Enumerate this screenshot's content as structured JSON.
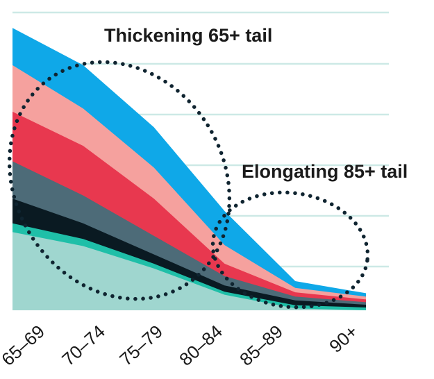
{
  "chart_data": {
    "type": "area",
    "stacked": true,
    "categories": [
      "65–69",
      "70–74",
      "75–79",
      "80–84",
      "85–89",
      "90+"
    ],
    "ylim": [
      0,
      100
    ],
    "grid": true,
    "series": [
      {
        "color": "#1fbfa8",
        "values": [
          28,
          23,
          15,
          6,
          1.6,
          0.9
        ]
      },
      {
        "color": "#0a1a22",
        "values": [
          8,
          5,
          3,
          2,
          1.6,
          0.9
        ]
      },
      {
        "color": "#4d6b78",
        "values": [
          12,
          9,
          6,
          3,
          1.2,
          0.8
        ]
      },
      {
        "color": "#e8384f",
        "values": [
          16,
          16,
          12,
          4,
          1.4,
          0.9
        ]
      },
      {
        "color": "#f5a19e",
        "values": [
          15,
          12,
          10,
          6,
          1.4,
          0.9
        ]
      },
      {
        "color": "#0fa8e8",
        "values": [
          12,
          14,
          13,
          11,
          2.2,
          1.1
        ]
      }
    ],
    "annotations": [
      {
        "text": "Thickening 65+ tail"
      },
      {
        "text": "Elongating 85+ tail"
      }
    ],
    "colors": {
      "grid": "#cde9e6",
      "base_fill": "#9fd6cf",
      "dots": "#0f2430"
    }
  }
}
